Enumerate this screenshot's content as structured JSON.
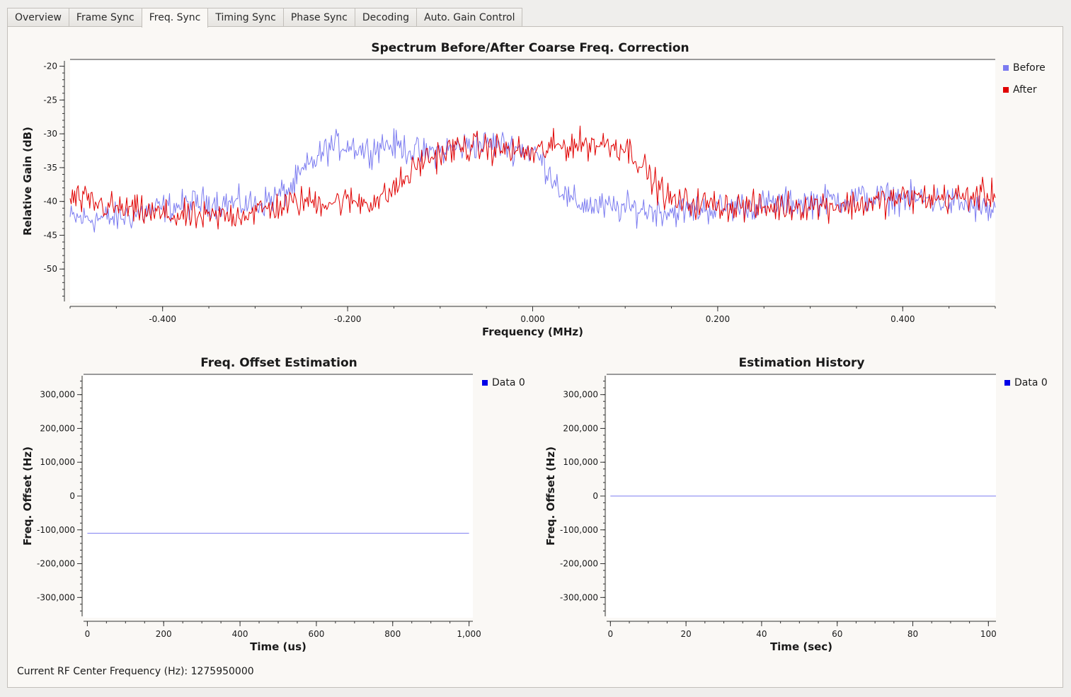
{
  "tabs": [
    {
      "label": "Overview",
      "active": false
    },
    {
      "label": "Frame Sync",
      "active": false
    },
    {
      "label": "Freq. Sync",
      "active": true
    },
    {
      "label": "Timing Sync",
      "active": false
    },
    {
      "label": "Phase Sync",
      "active": false
    },
    {
      "label": "Decoding",
      "active": false
    },
    {
      "label": "Auto. Gain Control",
      "active": false
    }
  ],
  "colors": {
    "before": "#7b7bf0",
    "after": "#e00000",
    "data0_legend": "#0000e8",
    "data0_line": "#7b7bf0"
  },
  "status": {
    "label": "Current RF Center Frequency (Hz):",
    "value": "1275950000"
  },
  "chart_data": [
    {
      "type": "line",
      "title": "Spectrum Before/After Coarse Freq. Correction",
      "xlabel": "Frequency (MHz)",
      "ylabel": "Relative Gain (dB)",
      "xlim": [
        -0.5,
        0.5
      ],
      "ylim": [
        -55,
        -19
      ],
      "xticks": [
        -0.4,
        -0.2,
        0.0,
        0.2,
        0.4
      ],
      "xtick_labels": [
        "-0.400",
        "-0.200",
        "0.000",
        "0.200",
        "0.400"
      ],
      "yticks": [
        -20,
        -25,
        -30,
        -35,
        -40,
        -45,
        -50
      ],
      "ytick_labels": [
        "-20",
        "-25",
        "-30",
        "-35",
        "-40",
        "-45",
        "-50"
      ],
      "legend_position": "right",
      "series": [
        {
          "name": "Before",
          "color": "#7b7bf0",
          "x": [
            -0.5,
            -0.45,
            -0.4,
            -0.35,
            -0.3,
            -0.28,
            -0.26,
            -0.25,
            -0.24,
            -0.22,
            -0.2,
            -0.18,
            -0.16,
            -0.14,
            -0.12,
            -0.1,
            -0.08,
            -0.06,
            -0.04,
            -0.02,
            0.0,
            0.01,
            0.02,
            0.03,
            0.04,
            0.06,
            0.08,
            0.1,
            0.15,
            0.2,
            0.25,
            0.3,
            0.35,
            0.4,
            0.45,
            0.48,
            0.5
          ],
          "values": [
            -42.5,
            -42.5,
            -41,
            -40,
            -40.5,
            -39.5,
            -38,
            -36,
            -34.5,
            -32,
            -31.5,
            -32.5,
            -31.5,
            -32,
            -33,
            -32.5,
            -32,
            -31.5,
            -31.5,
            -32,
            -32.5,
            -34,
            -36,
            -38,
            -40,
            -40.5,
            -41,
            -41,
            -41.5,
            -41,
            -40.5,
            -40,
            -39.5,
            -39.5,
            -40,
            -41,
            -41.5
          ]
        },
        {
          "name": "After",
          "color": "#e00000",
          "x": [
            -0.5,
            -0.45,
            -0.4,
            -0.35,
            -0.3,
            -0.25,
            -0.2,
            -0.18,
            -0.16,
            -0.15,
            -0.14,
            -0.12,
            -0.1,
            -0.08,
            -0.05,
            -0.02,
            0.0,
            0.02,
            0.05,
            0.08,
            0.1,
            0.11,
            0.12,
            0.13,
            0.14,
            0.15,
            0.2,
            0.25,
            0.3,
            0.35,
            0.4,
            0.45,
            0.5
          ],
          "values": [
            -39.5,
            -41,
            -42,
            -42.5,
            -41.5,
            -40,
            -40,
            -40,
            -39.5,
            -38,
            -37,
            -34,
            -33,
            -32,
            -32,
            -32.5,
            -33,
            -32,
            -31.5,
            -31.5,
            -32,
            -33,
            -35,
            -37,
            -38.5,
            -40,
            -40.5,
            -41,
            -40.5,
            -40.5,
            -39.5,
            -39.5,
            -39
          ]
        }
      ]
    },
    {
      "type": "line",
      "title": "Freq. Offset Estimation",
      "xlabel": "Time (us)",
      "ylabel": "Freq. Offset (Hz)",
      "xlim": [
        -10,
        1010
      ],
      "ylim": [
        -360000,
        360000
      ],
      "xticks": [
        0,
        200,
        400,
        600,
        800,
        1000
      ],
      "xtick_labels": [
        "0",
        "200",
        "400",
        "600",
        "800",
        "1,000"
      ],
      "yticks": [
        300000,
        200000,
        100000,
        0,
        -100000,
        -200000,
        -300000
      ],
      "ytick_labels": [
        "300,000",
        "200,000",
        "100,000",
        "0",
        "-100,000",
        "-200,000",
        "-300,000"
      ],
      "legend_position": "top-right",
      "series": [
        {
          "name": "Data 0",
          "color": "#7b7bf0",
          "x": [
            0,
            1000
          ],
          "values": [
            -110000,
            -110000
          ]
        }
      ]
    },
    {
      "type": "line",
      "title": "Estimation History",
      "xlabel": "Time (sec)",
      "ylabel": "Freq. Offset (Hz)",
      "xlim": [
        -1,
        102
      ],
      "ylim": [
        -360000,
        360000
      ],
      "xticks": [
        0,
        20,
        40,
        60,
        80,
        100
      ],
      "xtick_labels": [
        "0",
        "20",
        "40",
        "60",
        "80",
        "100"
      ],
      "yticks": [
        300000,
        200000,
        100000,
        0,
        -100000,
        -200000,
        -300000
      ],
      "ytick_labels": [
        "300,000",
        "200,000",
        "100,000",
        "0",
        "-100,000",
        "-200,000",
        "-300,000"
      ],
      "legend_position": "top-right",
      "series": [
        {
          "name": "Data 0",
          "color": "#7b7bf0",
          "x": [
            0,
            102
          ],
          "values": [
            0,
            0
          ]
        }
      ]
    }
  ]
}
